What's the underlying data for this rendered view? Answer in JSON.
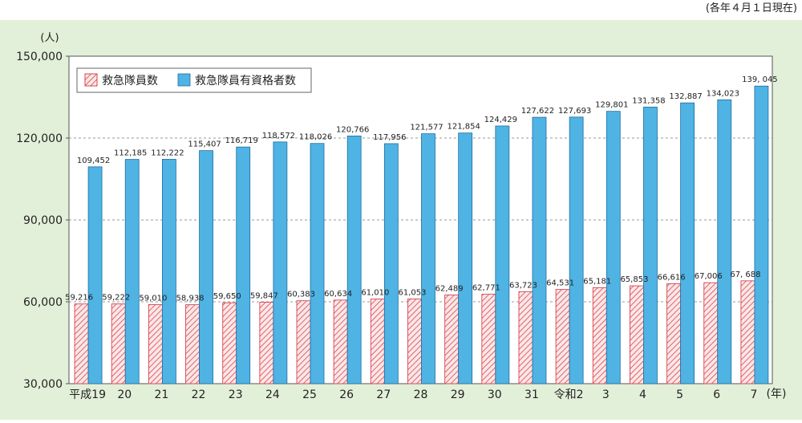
{
  "note": "(各年４月１日現在)",
  "colors": {
    "panel_bg": "#e3f0d9",
    "plot_bg": "#ffffff",
    "qualified_bar": "#4fb3e4",
    "members_hatch": "#d9434e",
    "members_fill": "#fbe7e7"
  },
  "chart_data": {
    "type": "bar",
    "y_unit": "(人)",
    "x_unit": "(年)",
    "ylim": [
      30000,
      150000
    ],
    "y_ticks": [
      "30,000",
      "60,000",
      "90,000",
      "120,000",
      "150,000"
    ],
    "y_tick_values": [
      30000,
      60000,
      90000,
      120000,
      150000
    ],
    "categories": [
      "平成19",
      "20",
      "21",
      "22",
      "23",
      "24",
      "25",
      "26",
      "27",
      "28",
      "29",
      "30",
      "31",
      "令和2",
      "3",
      "4",
      "5",
      "6",
      "7"
    ],
    "legend_position": "top-left",
    "grid": "dashed horizontal",
    "series": [
      {
        "name": "救急隊員数",
        "pattern": "hatched",
        "values": [
          59216,
          59222,
          59010,
          58938,
          59650,
          59847,
          60383,
          60634,
          61010,
          61053,
          62489,
          62771,
          63723,
          64531,
          65181,
          65853,
          66616,
          67006,
          67688
        ],
        "labels": [
          "59,216",
          "59,222",
          "59,010",
          "58,938",
          "59,650",
          "59,847",
          "60,383",
          "60,634",
          "61,010",
          "61,053",
          "62,489",
          "62,771",
          "63,723",
          "64,531",
          "65,181",
          "65,853",
          "66,616",
          "67,006",
          "67, 688"
        ]
      },
      {
        "name": "救急隊員有資格者数",
        "pattern": "solid",
        "values": [
          109452,
          112185,
          112222,
          115407,
          116719,
          118572,
          118026,
          120766,
          117956,
          121577,
          121854,
          124429,
          127622,
          127693,
          129801,
          131358,
          132887,
          134023,
          139045
        ],
        "labels": [
          "109,452",
          "112,185",
          "112,222",
          "115,407",
          "116,719",
          "118,572",
          "118,026",
          "120,766",
          "117,956",
          "121,577",
          "121,854",
          "124,429",
          "127,622",
          "127,693",
          "129,801",
          "131,358",
          "132,887",
          "134,023",
          "139, 045"
        ]
      }
    ]
  }
}
